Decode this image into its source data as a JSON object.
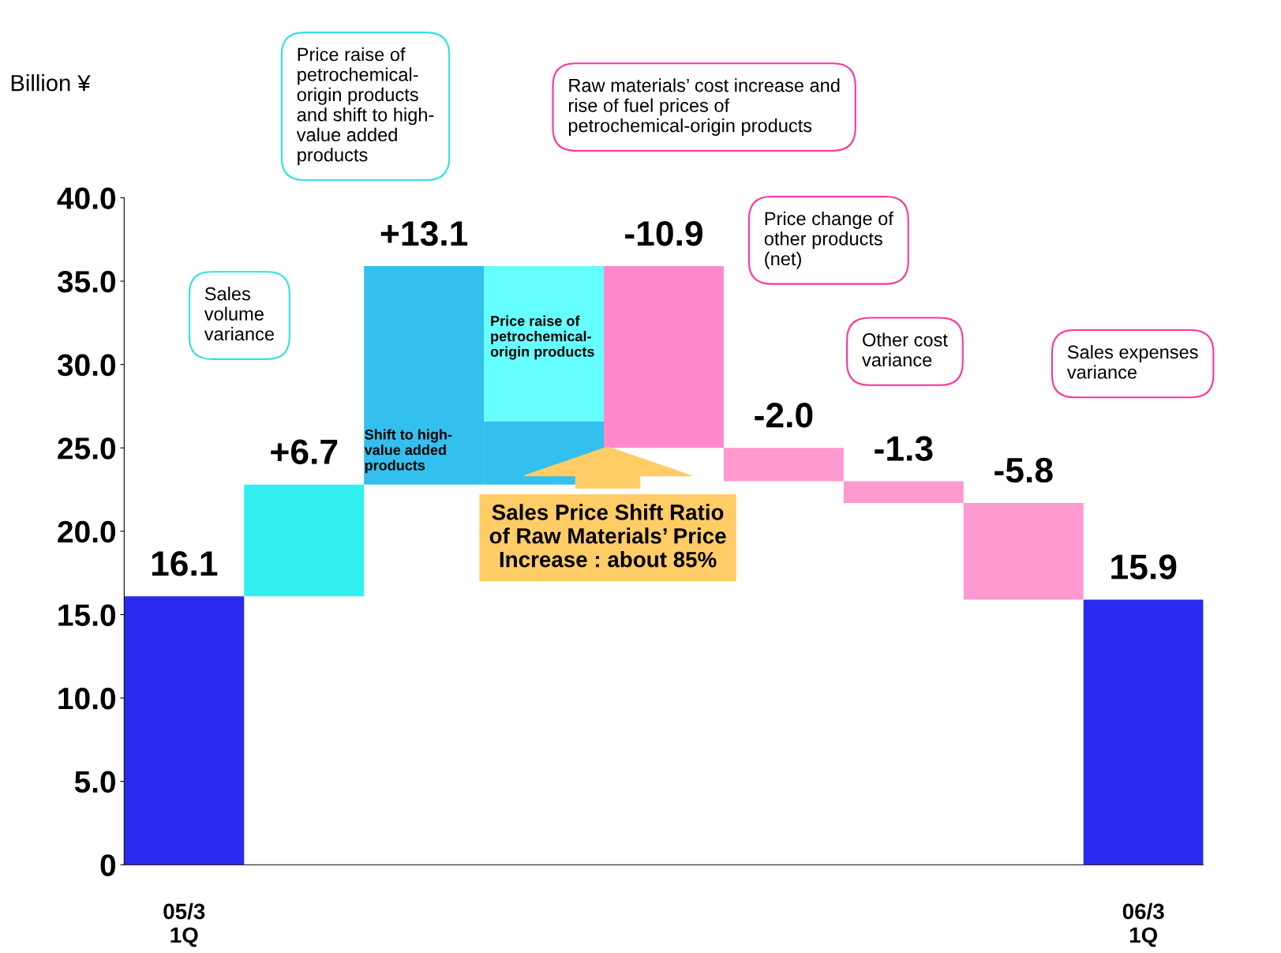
{
  "chart_data": {
    "type": "bar",
    "ylabel": "Billion ¥",
    "categories": [
      "05/3\n1Q",
      null,
      null,
      null,
      null,
      null,
      null,
      null,
      "06/3\n1Q"
    ],
    "series": [
      {
        "values": [
          16.1,
          6.7,
          13.1,
          null,
          -10.9,
          -2.0,
          -1.3,
          -5.8,
          15.9
        ],
        "base": [
          0,
          16.1,
          22.8,
          null,
          35.9,
          25.0,
          23.0,
          21.7,
          0
        ],
        "colors": [
          "#2a2af0",
          "#33f0f0",
          "#33c0ee",
          null,
          "#ff88cc",
          "#ff99d0",
          "#ff99d0",
          "#ff99d0",
          "#2a2af0"
        ],
        "value_labels": [
          "16.1",
          "+6.7",
          "+13.1",
          null,
          "-10.9",
          "-2.0",
          "-1.3",
          "-5.8",
          "15.9"
        ]
      },
      {
        "values": [
          null,
          null,
          null,
          3.8,
          null,
          null,
          null,
          null,
          null
        ],
        "base": [
          null,
          null,
          null,
          22.8,
          null,
          null,
          null,
          null,
          null
        ],
        "color": "#33c0ee"
      },
      {
        "values": [
          null,
          null,
          null,
          9.3,
          null,
          null,
          null,
          null,
          null
        ],
        "base": [
          null,
          null,
          null,
          26.6,
          null,
          null,
          null,
          null,
          null
        ],
        "color": "#66ffff"
      }
    ],
    "ylim": [
      0,
      40
    ],
    "yticks": [
      {
        "value": 0,
        "label": "0"
      },
      {
        "value": 5,
        "label": "5.0"
      },
      {
        "value": 10,
        "label": "10.0"
      },
      {
        "value": 15,
        "label": "15.0"
      },
      {
        "value": 20,
        "label": "20.0"
      },
      {
        "value": 25,
        "label": "25.0"
      },
      {
        "value": 30,
        "label": "30.0"
      },
      {
        "value": 35,
        "label": "35.0"
      },
      {
        "value": 40,
        "label": "40.0"
      }
    ],
    "grid": false,
    "legend": false,
    "annotations": [
      "Sales\nvolume\nvariance",
      "Price raise of\npetrochemical-\norigin products\nand shift to high-\nvalue added\nproducts",
      "Raw materials’ cost increase and\nrise of fuel prices of\npetrochemical-origin products",
      "Price change of\nother products\n(net)",
      "Other cost\nvariance",
      "Sales expenses\nvariance",
      "Price raise of\npetrochemical-\norigin products",
      "Shift to high-\nvalue added\nproducts",
      "Sales Price Shift Ratio\nof Raw Materials’ Price\nIncrease : about 85%"
    ]
  }
}
